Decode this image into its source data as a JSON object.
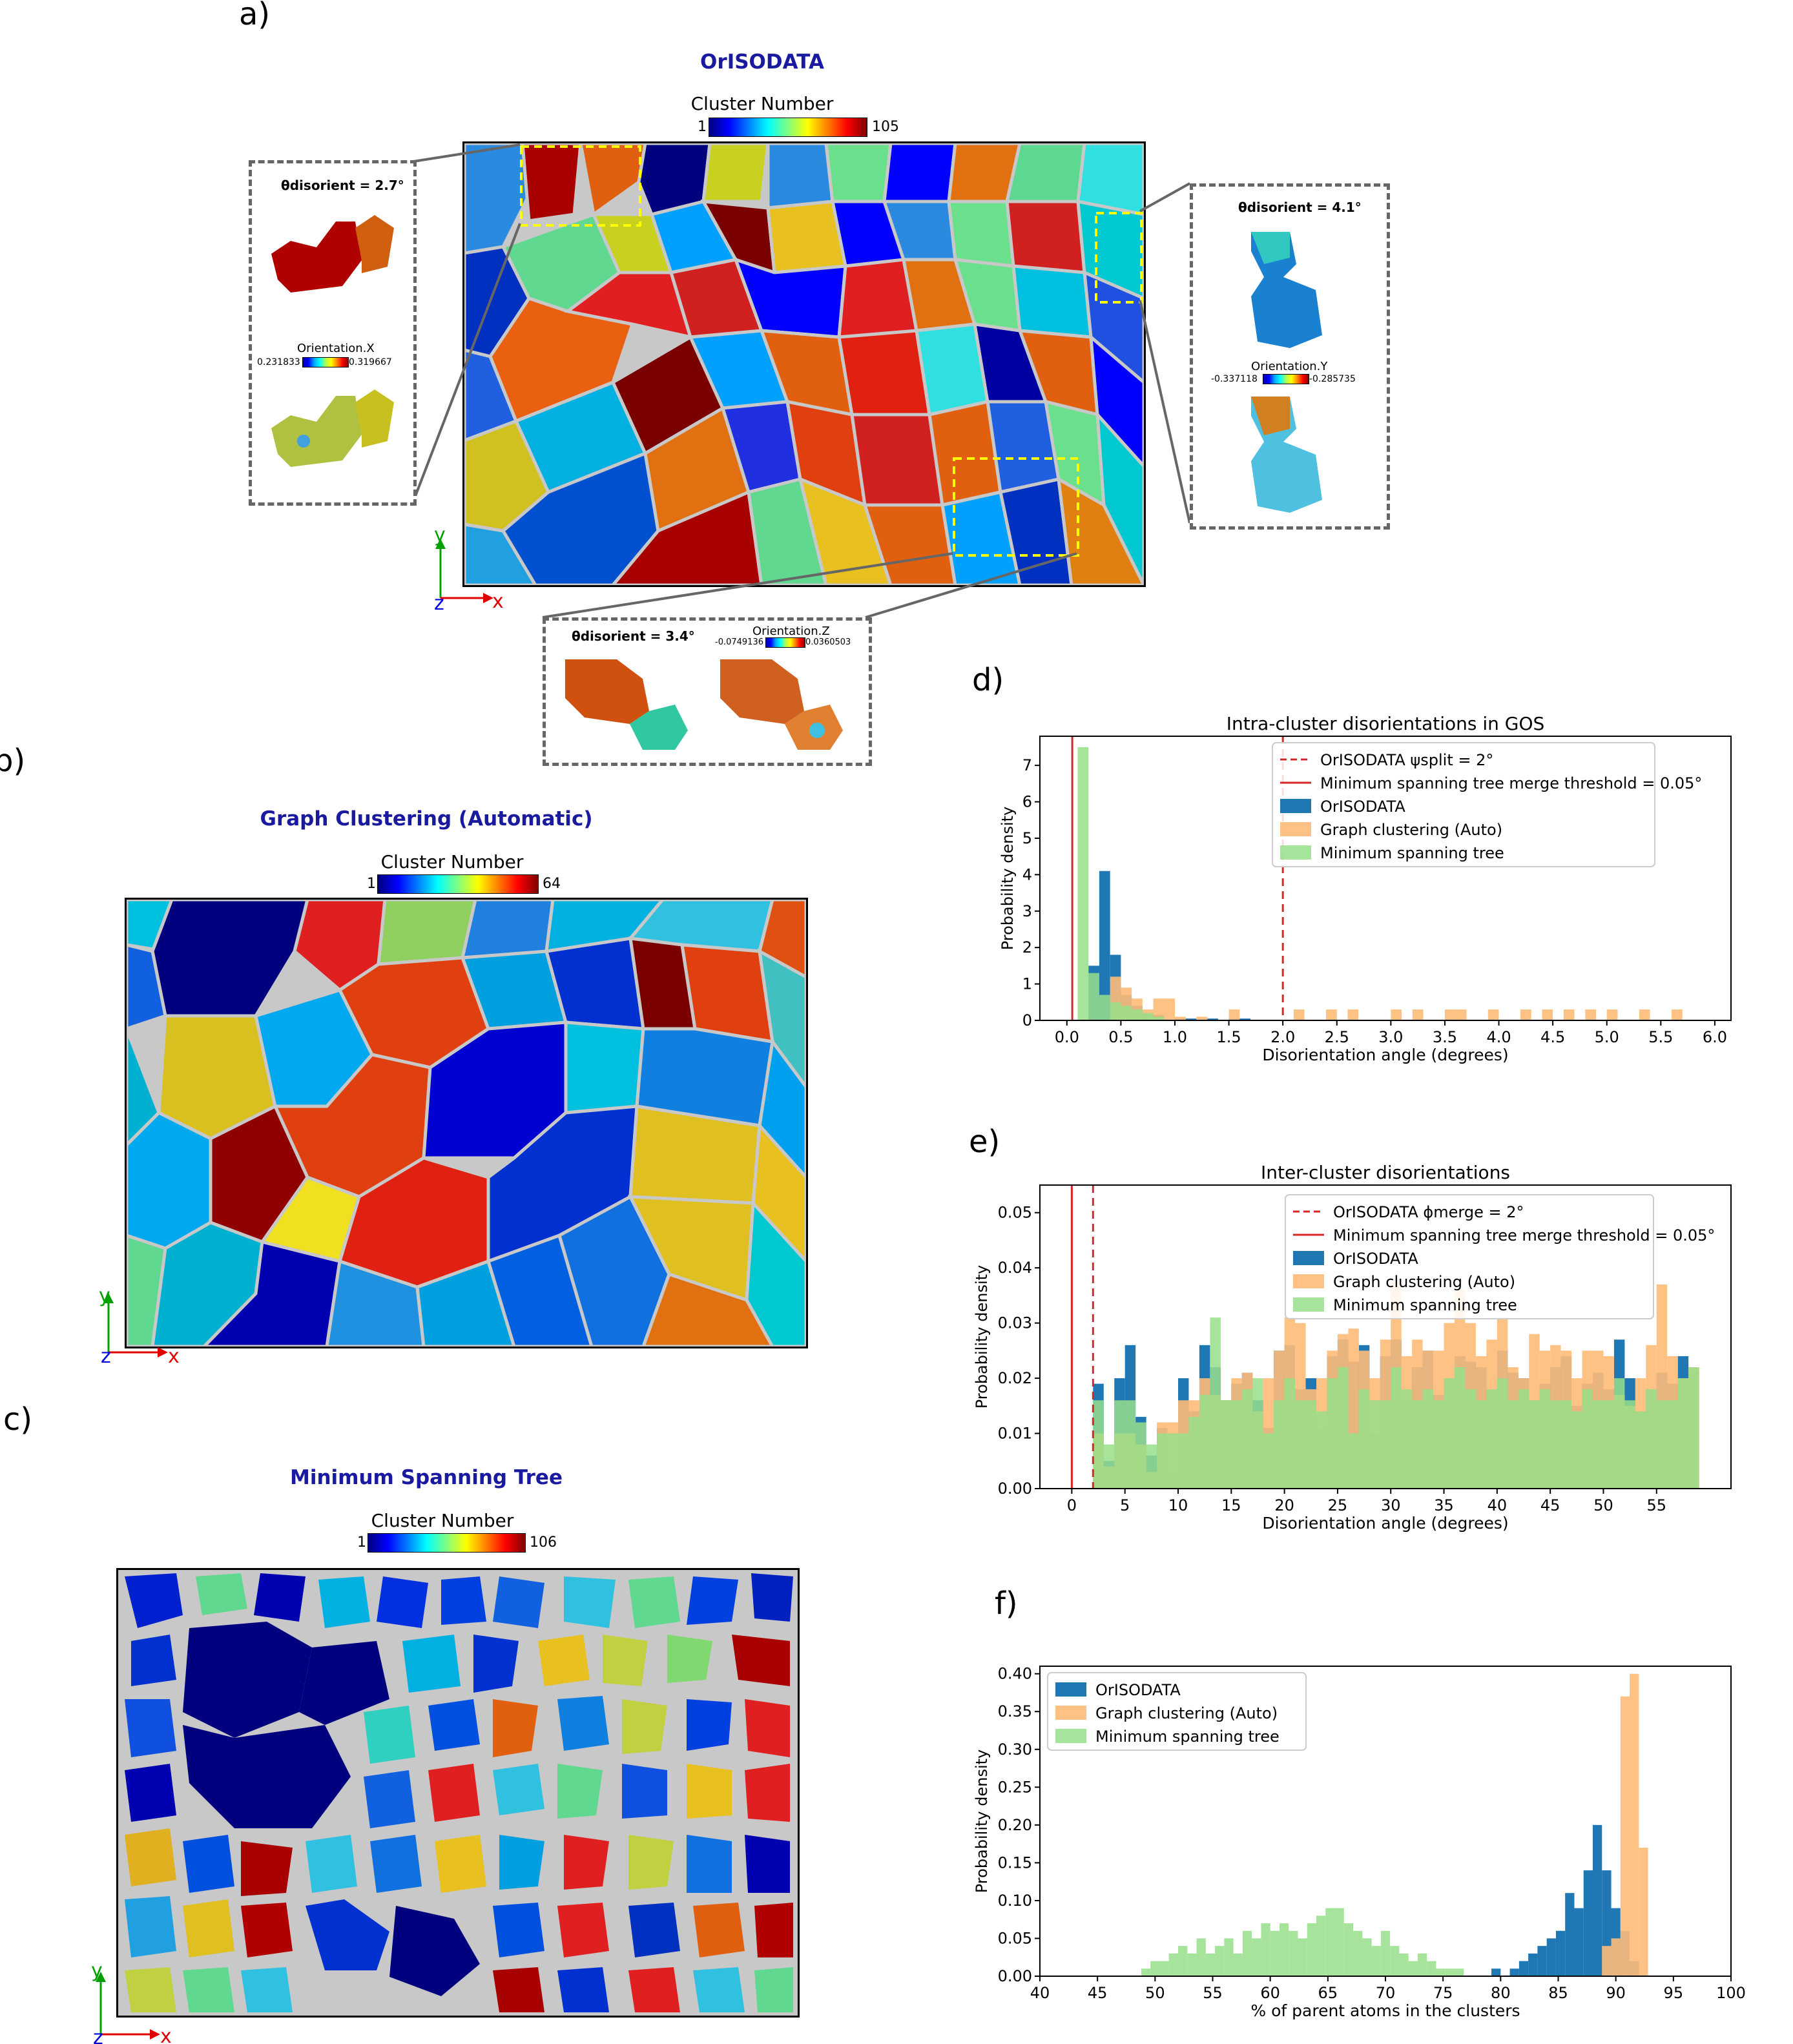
{
  "panel_labels": {
    "a": "a)",
    "b": "b)",
    "c": "c)",
    "d": "d)",
    "e": "e)",
    "f": "f)"
  },
  "panel_a": {
    "title": "OrISODATA",
    "colorbar": {
      "title": "Cluster Number",
      "min": "1",
      "max": "105"
    },
    "inset_left": {
      "theta": "θdisorient = 2.7°",
      "orient_label": "Orientation.X",
      "min": "0.231833",
      "max": "0.319667"
    },
    "inset_right": {
      "theta": "θdisorient = 4.1°",
      "orient_label": "Orientation.Y",
      "min": "-0.337118",
      "max": "-0.285735"
    },
    "inset_bottom": {
      "theta": "θdisorient = 3.4°",
      "orient_label": "Orientation.Z",
      "min": "-0.0749136",
      "max": "0.0360503"
    }
  },
  "panel_b": {
    "title": "Graph Clustering (Automatic)",
    "colorbar": {
      "title": "Cluster Number",
      "min": "1",
      "max": "64"
    }
  },
  "panel_c": {
    "title": "Minimum Spanning Tree",
    "colorbar": {
      "title": "Cluster Number",
      "min": "1",
      "max": "106"
    }
  },
  "axes_triad": {
    "y": "y",
    "z": "z",
    "x": "x"
  },
  "colors": {
    "orisodata": "#1f77b4",
    "graph": "#ffbb78",
    "mst": "#98df8a",
    "title_blue": "#1a1aa0",
    "red": "#d62728"
  },
  "chart_data": [
    {
      "type": "bar",
      "title": "Intra-cluster disorientations in GOS",
      "xlabel": "Disorientation angle (degrees)",
      "ylabel": "Probability density",
      "xlim": [
        -0.25,
        6.15
      ],
      "ylim": [
        0,
        7.8
      ],
      "xticks": [
        "0.0",
        "0.5",
        "1.0",
        "1.5",
        "2.0",
        "2.5",
        "3.0",
        "3.5",
        "4.0",
        "4.5",
        "5.0",
        "5.5",
        "6.0"
      ],
      "yticks": [
        "0",
        "1",
        "2",
        "3",
        "4",
        "5",
        "6",
        "7"
      ],
      "bin_width": 0.1,
      "vlines": [
        {
          "x": 2.0,
          "style": "dashed",
          "label": "OrISODATA ψsplit = 2°"
        },
        {
          "x": 0.05,
          "style": "solid",
          "label": "Minimum spanning tree merge threshold = 0.05°"
        }
      ],
      "legend": [
        "OrISODATA",
        "Graph clustering (Auto)",
        "Minimum spanning tree"
      ],
      "series": [
        {
          "name": "OrISODATA",
          "x": [
            0.2,
            0.3,
            0.4,
            0.5,
            0.6,
            0.7,
            0.8,
            1.0,
            1.1,
            1.3,
            1.5,
            1.6
          ],
          "values": [
            1.5,
            4.1,
            1.8,
            0.7,
            0.4,
            0.2,
            0.15,
            0.05,
            0.05,
            0.05,
            0.05,
            0.05
          ]
        },
        {
          "name": "Graph clustering (Auto)",
          "x": [
            0.4,
            0.5,
            0.6,
            0.7,
            0.8,
            0.9,
            1.0,
            1.2,
            1.5,
            2.1,
            2.4,
            2.6,
            3.0,
            3.2,
            3.5,
            3.6,
            3.9,
            4.2,
            4.4,
            4.6,
            4.8,
            5.0,
            5.3,
            5.6
          ],
          "values": [
            1.2,
            0.9,
            0.6,
            0.3,
            0.6,
            0.6,
            0.1,
            0.1,
            0.3,
            0.3,
            0.3,
            0.3,
            0.3,
            0.3,
            0.3,
            0.3,
            0.3,
            0.3,
            0.3,
            0.3,
            0.3,
            0.3,
            0.3,
            0.3
          ]
        },
        {
          "name": "Minimum spanning tree",
          "x": [
            0.1,
            0.2,
            0.3,
            0.4,
            0.5,
            0.6,
            0.7,
            0.8
          ],
          "values": [
            7.5,
            1.3,
            0.7,
            0.5,
            0.4,
            0.3,
            0.2,
            0.1
          ]
        }
      ]
    },
    {
      "type": "bar",
      "title": "Inter-cluster disorientations",
      "xlabel": "Disorientation angle (degrees)",
      "ylabel": "Probability density",
      "xlim": [
        -3,
        62
      ],
      "ylim": [
        0,
        0.055
      ],
      "xticks": [
        "0",
        "5",
        "10",
        "15",
        "20",
        "25",
        "30",
        "35",
        "40",
        "45",
        "50",
        "55"
      ],
      "yticks": [
        "0.00",
        "0.01",
        "0.02",
        "0.03",
        "0.04",
        "0.05"
      ],
      "bin_width": 1,
      "vlines": [
        {
          "x": 2,
          "style": "dashed",
          "label": "OrISODATA ϕmerge = 2°"
        },
        {
          "x": 0,
          "style": "solid",
          "label": "Minimum spanning tree merge threshold = 0.05°"
        }
      ],
      "legend": [
        "OrISODATA",
        "Graph clustering (Auto)",
        "Minimum spanning tree"
      ],
      "series": [
        {
          "name": "OrISODATA",
          "x": [
            2,
            3,
            4,
            5,
            6,
            7,
            8,
            9,
            10,
            11,
            12,
            13,
            14,
            15,
            16,
            17,
            18,
            19,
            20,
            21,
            22,
            23,
            24,
            25,
            26,
            27,
            28,
            29,
            30,
            31,
            32,
            33,
            34,
            35,
            36,
            37,
            38,
            39,
            40,
            41,
            42,
            43,
            44,
            45,
            46,
            47,
            48,
            49,
            50,
            51,
            52,
            53,
            54,
            55,
            56,
            57,
            58
          ],
          "values": [
            0.019,
            0.005,
            0.02,
            0.026,
            0.013,
            0.006,
            0.011,
            0.003,
            0.02,
            0.014,
            0.026,
            0.022,
            0.016,
            0.019,
            0.021,
            0.016,
            0.011,
            0.025,
            0.026,
            0.018,
            0.02,
            0.011,
            0.024,
            0.027,
            0.023,
            0.026,
            0.01,
            0.024,
            0.027,
            0.016,
            0.022,
            0.025,
            0.017,
            0.02,
            0.024,
            0.023,
            0.022,
            0.018,
            0.025,
            0.021,
            0.02,
            0.016,
            0.019,
            0.022,
            0.024,
            0.015,
            0.019,
            0.021,
            0.018,
            0.027,
            0.02,
            0.014,
            0.018,
            0.021,
            0.019,
            0.024,
            0.021
          ]
        },
        {
          "name": "Graph clustering (Auto)",
          "x": [
            2,
            3,
            4,
            5,
            6,
            7,
            8,
            9,
            10,
            11,
            12,
            13,
            14,
            15,
            16,
            17,
            18,
            19,
            20,
            21,
            22,
            23,
            24,
            25,
            26,
            27,
            28,
            29,
            30,
            31,
            32,
            33,
            34,
            35,
            36,
            37,
            38,
            39,
            40,
            41,
            42,
            43,
            44,
            45,
            46,
            47,
            48,
            49,
            50,
            51,
            52,
            53,
            54,
            55,
            56,
            57,
            58
          ],
          "values": [
            0.01,
            0.004,
            0.01,
            0.01,
            0.008,
            0.003,
            0.012,
            0.012,
            0.016,
            0.016,
            0.02,
            0.017,
            0.016,
            0.02,
            0.021,
            0.014,
            0.02,
            0.025,
            0.031,
            0.03,
            0.018,
            0.02,
            0.025,
            0.028,
            0.029,
            0.025,
            0.02,
            0.027,
            0.038,
            0.024,
            0.027,
            0.025,
            0.025,
            0.03,
            0.036,
            0.03,
            0.024,
            0.027,
            0.031,
            0.022,
            0.02,
            0.028,
            0.025,
            0.026,
            0.025,
            0.02,
            0.025,
            0.025,
            0.024,
            0.017,
            0.015,
            0.02,
            0.026,
            0.037,
            0.024,
            0.02,
            0.022
          ]
        },
        {
          "name": "Minimum spanning tree",
          "x": [
            2,
            3,
            4,
            5,
            6,
            7,
            8,
            9,
            10,
            11,
            12,
            13,
            14,
            15,
            16,
            17,
            18,
            19,
            20,
            21,
            22,
            23,
            24,
            25,
            26,
            27,
            28,
            29,
            30,
            31,
            32,
            33,
            34,
            35,
            36,
            37,
            38,
            39,
            40,
            41,
            42,
            43,
            44,
            45,
            46,
            47,
            48,
            49,
            50,
            51,
            52,
            53,
            54,
            55,
            56,
            57,
            58
          ],
          "values": [
            0.016,
            0.008,
            0.016,
            0.016,
            0.012,
            0.008,
            0.01,
            0.01,
            0.01,
            0.013,
            0.017,
            0.031,
            0.016,
            0.016,
            0.018,
            0.02,
            0.01,
            0.016,
            0.02,
            0.016,
            0.016,
            0.014,
            0.02,
            0.022,
            0.01,
            0.018,
            0.016,
            0.016,
            0.022,
            0.018,
            0.016,
            0.018,
            0.016,
            0.02,
            0.022,
            0.018,
            0.016,
            0.018,
            0.02,
            0.016,
            0.018,
            0.016,
            0.018,
            0.016,
            0.016,
            0.014,
            0.018,
            0.016,
            0.016,
            0.02,
            0.016,
            0.014,
            0.018,
            0.016,
            0.016,
            0.02,
            0.022
          ]
        }
      ]
    },
    {
      "type": "bar",
      "title": "",
      "xlabel": "% of parent atoms in the clusters",
      "ylabel": "Probability density",
      "xlim": [
        40,
        100
      ],
      "ylim": [
        0,
        0.41
      ],
      "xticks": [
        "40",
        "45",
        "50",
        "55",
        "60",
        "65",
        "70",
        "75",
        "80",
        "85",
        "90",
        "95",
        "100"
      ],
      "yticks": [
        "0.00",
        "0.05",
        "0.10",
        "0.15",
        "0.20",
        "0.25",
        "0.30",
        "0.35",
        "0.40"
      ],
      "bin_width": 0.8,
      "legend": [
        "OrISODATA",
        "Graph clustering (Auto)",
        "Minimum spanning tree"
      ],
      "series": [
        {
          "name": "OrISODATA",
          "x": [
            79.2,
            80.8,
            81.6,
            82.4,
            83.2,
            84.0,
            84.8,
            85.6,
            86.4,
            87.2,
            88.0,
            88.8,
            89.6,
            90.4,
            91.2
          ],
          "values": [
            0.01,
            0.01,
            0.02,
            0.03,
            0.04,
            0.05,
            0.06,
            0.11,
            0.09,
            0.14,
            0.2,
            0.14,
            0.09,
            0.06,
            0.02
          ]
        },
        {
          "name": "Graph clustering (Auto)",
          "x": [
            88.8,
            89.6,
            90.4,
            91.2,
            92.0
          ],
          "values": [
            0.04,
            0.05,
            0.37,
            0.4,
            0.17
          ]
        },
        {
          "name": "Minimum spanning tree",
          "x": [
            48.8,
            49.6,
            50.4,
            51.2,
            52.0,
            52.8,
            53.6,
            54.4,
            55.2,
            56.0,
            56.8,
            57.6,
            58.4,
            59.2,
            60.0,
            60.8,
            61.6,
            62.4,
            63.2,
            64.0,
            64.8,
            65.6,
            66.4,
            67.2,
            68.0,
            68.8,
            69.6,
            70.4,
            71.2,
            72.0,
            72.8,
            73.6,
            74.4,
            75.2,
            76.0
          ],
          "values": [
            0.01,
            0.02,
            0.02,
            0.03,
            0.04,
            0.03,
            0.05,
            0.03,
            0.04,
            0.05,
            0.03,
            0.06,
            0.05,
            0.07,
            0.06,
            0.07,
            0.06,
            0.05,
            0.07,
            0.08,
            0.09,
            0.09,
            0.07,
            0.06,
            0.05,
            0.04,
            0.06,
            0.04,
            0.03,
            0.02,
            0.03,
            0.02,
            0.01,
            0.01,
            0.01
          ]
        }
      ]
    }
  ]
}
